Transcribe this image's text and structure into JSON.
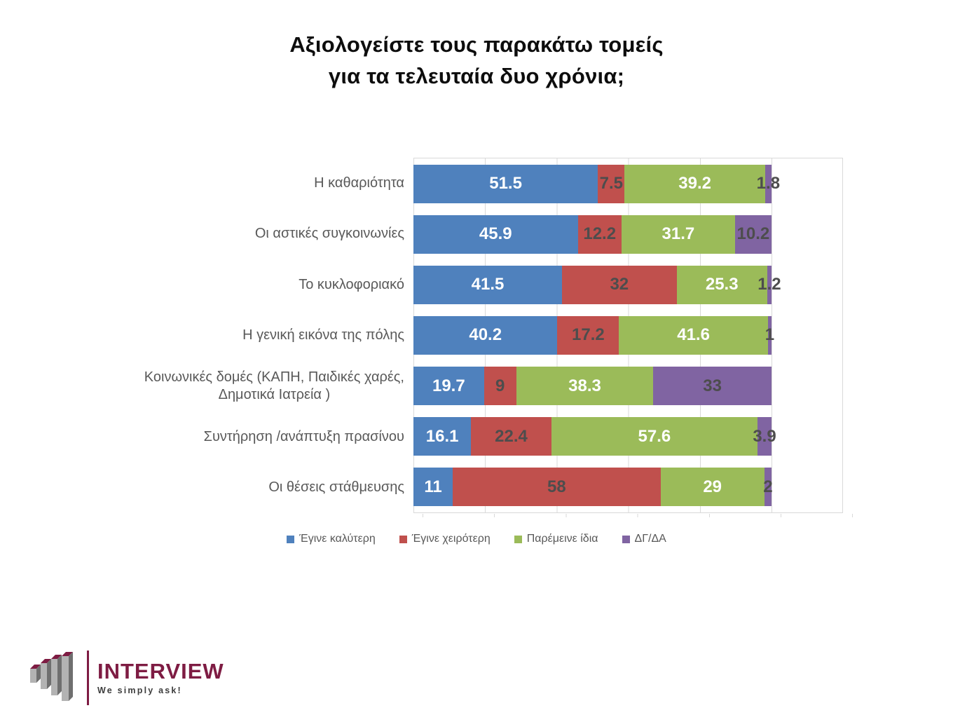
{
  "title": "Αξιολογείστε τους παρακάτω τομείς\nγια τα τελευταία δυο χρόνια;",
  "chart_data": {
    "type": "bar",
    "orientation": "horizontal",
    "stacked": true,
    "unit": "percent",
    "categories": [
      "Η καθαριότητα",
      "Οι αστικές συγκοινωνίες",
      "Το κυκλοφοριακό",
      "Η γενική εικόνα της πόλης",
      "Κοινωνικές δομές (ΚΑΠΗ, Παιδικές χαρές,\nΔημοτικά Ιατρεία )",
      "Συντήρηση /ανάπτυξη πρασίνου",
      "Οι θέσεις στάθμευσης"
    ],
    "series": [
      {
        "name": "Έγινε καλύτερη",
        "color": "#4F81BD",
        "label_color": "#FFFFFF",
        "values": [
          51.5,
          45.9,
          41.5,
          40.2,
          19.7,
          16.1,
          11
        ]
      },
      {
        "name": "Έγινε χειρότερη",
        "color": "#C0504D",
        "label_color": "#4D4D4D",
        "values": [
          7.5,
          12.2,
          32,
          17.2,
          9,
          22.4,
          58
        ]
      },
      {
        "name": "Παρέμεινε ίδια",
        "color": "#9BBB59",
        "label_color": "#FFFFFF",
        "values": [
          39.2,
          31.7,
          25.3,
          41.6,
          38.3,
          57.6,
          29
        ]
      },
      {
        "name": "ΔΓ/ΔΑ",
        "color": "#8064A2",
        "label_color": "#4D4D4D",
        "values": [
          1.8,
          10.2,
          1.2,
          1,
          33,
          3.9,
          2
        ]
      }
    ],
    "xlim": [
      0,
      120
    ],
    "gridline_interval": 20,
    "grid": true,
    "gridline_color": "#D9D9D9",
    "legend_position": "bottom",
    "title": "Αξιολογείστε τους παρακάτω τομείς για τα τελευταία δυο χρόνια;",
    "xlabel": "",
    "ylabel": ""
  },
  "logo": {
    "brand": "INTERVIEW",
    "tagline": "We simply ask!",
    "brand_color": "#7E1C43",
    "icon": "bar-chart-3d-icon",
    "icon_front_color": "#B3B3B3",
    "icon_side_color": "#6F6F6F",
    "icon_top_color": "#7E1C43"
  }
}
